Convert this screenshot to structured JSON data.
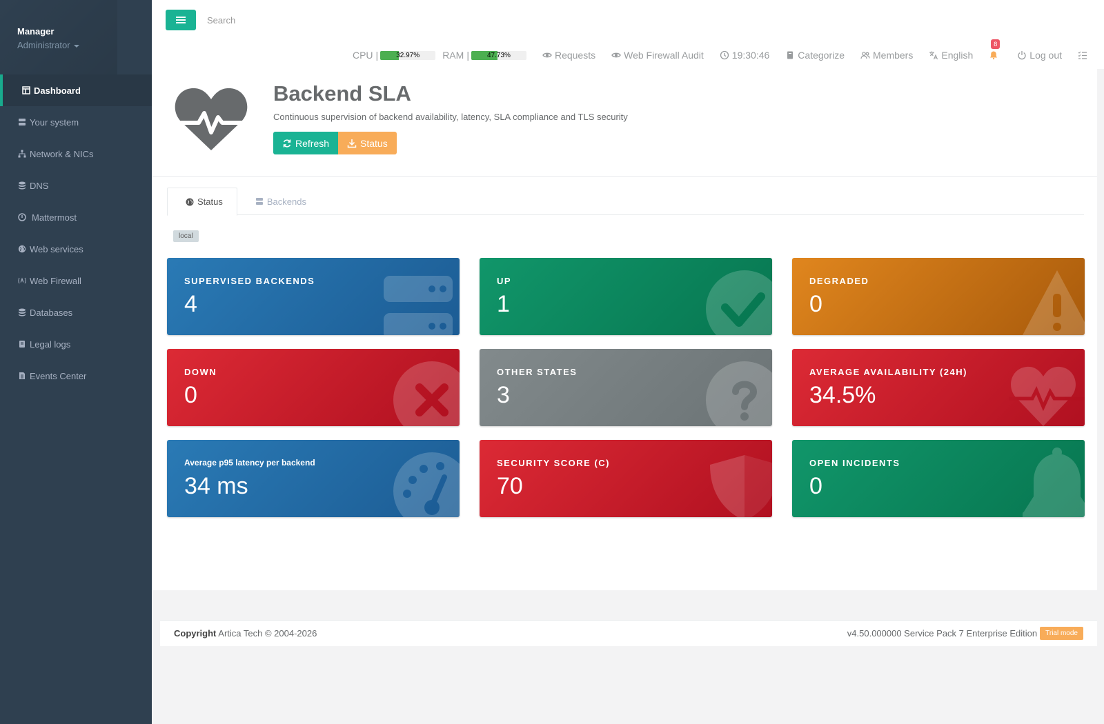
{
  "sidebar": {
    "user_name": "Manager",
    "user_role": "Administrator",
    "items": [
      {
        "label": "Dashboard",
        "icon": "dashboard-icon"
      },
      {
        "label": "Your system",
        "icon": "server-icon"
      },
      {
        "label": "Network & NICs",
        "icon": "network-icon"
      },
      {
        "label": "DNS",
        "icon": "database-icon"
      },
      {
        "label": "Mattermost",
        "icon": "mattermost-icon"
      },
      {
        "label": "Web services",
        "icon": "globe-icon"
      },
      {
        "label": "Web Firewall",
        "icon": "firewall-icon"
      },
      {
        "label": "Databases",
        "icon": "database-icon"
      },
      {
        "label": "Legal logs",
        "icon": "book-icon"
      },
      {
        "label": "Events Center",
        "icon": "file-icon"
      }
    ]
  },
  "topbar": {
    "search_placeholder": "Search",
    "cpu_label": "CPU",
    "cpu_value": "32.97%",
    "cpu_fraction": 0.3297,
    "ram_label": "RAM",
    "ram_value": "47.73%",
    "ram_fraction": 0.4773,
    "requests": "Requests",
    "waf_audit": "Web Firewall Audit",
    "clock": "19:30:46",
    "categorize": "Categorize",
    "members": "Members",
    "language": "English",
    "notifications_count": "8",
    "logout": "Log out"
  },
  "header": {
    "title": "Backend SLA",
    "subtitle": "Continuous supervision of backend availability, latency, SLA compliance and TLS security",
    "refresh_label": "Refresh",
    "status_label": "Status"
  },
  "tabs": [
    {
      "label": "Status"
    },
    {
      "label": "Backends"
    }
  ],
  "tag": "local",
  "cards": [
    {
      "title": "SUPERVISED BACKENDS",
      "value": "4"
    },
    {
      "title": "UP",
      "value": "1"
    },
    {
      "title": "DEGRADED",
      "value": "0"
    },
    {
      "title": "DOWN",
      "value": "0"
    },
    {
      "title": "OTHER STATES",
      "value": "3"
    },
    {
      "title": "AVERAGE AVAILABILITY (24H)",
      "value": "34.5%"
    },
    {
      "title": "Average p95 latency per backend",
      "value": "34 ms"
    },
    {
      "title": "SECURITY SCORE (C)",
      "value": "70"
    },
    {
      "title": "OPEN INCIDENTS",
      "value": "0"
    }
  ],
  "colors": {
    "accent": "#1ab394",
    "warning": "#f8ac59",
    "sidebar": "#2f4050",
    "danger_badge": "#ed5565"
  },
  "footer": {
    "copyright_bold": "Copyright",
    "copyright_text": "Artica Tech © 2004-2026",
    "version": "v4.50.000000 Service Pack 7 Enterprise Edition",
    "trial": "Trial mode"
  }
}
